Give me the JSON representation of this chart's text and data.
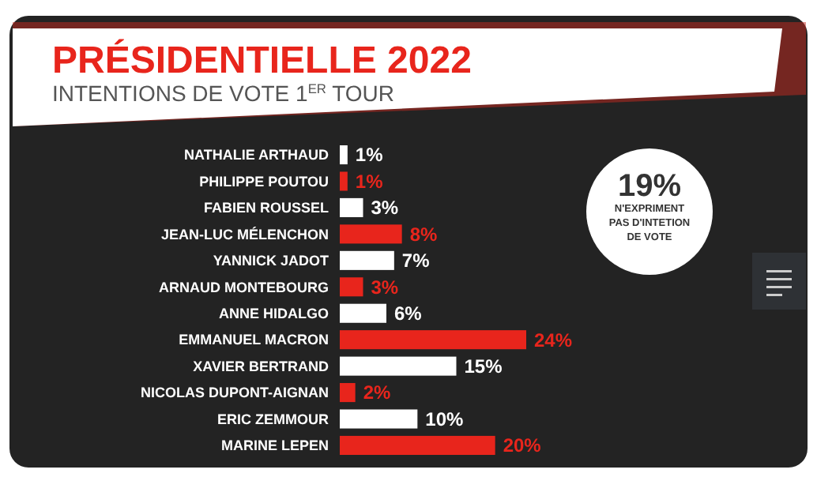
{
  "chart_data": {
    "type": "bar",
    "orientation": "horizontal",
    "title": "PRÉSIDENTIELLE 2022",
    "subtitle": "INTENTIONS DE VOTE 1$^{ER}$ TOUR",
    "categories": [
      "NATHALIE ARTHAUD",
      "PHILIPPE POUTOU",
      "FABIEN ROUSSEL",
      "JEAN-LUC MÉLENCHON",
      "YANNICK JADOT",
      "ARNAUD MONTEBOURG",
      "ANNE HIDALGO",
      "EMMANUEL MACRON",
      "XAVIER BERTRAND",
      "NICOLAS DUPONT-AIGNAN",
      "ERIC ZEMMOUR",
      "MARINE LEPEN"
    ],
    "values": [
      1,
      1,
      3,
      8,
      7,
      3,
      6,
      24,
      15,
      2,
      10,
      20
    ],
    "colors": [
      "#ffffff",
      "#e8251c",
      "#ffffff",
      "#e8251c",
      "#ffffff",
      "#e8251c",
      "#ffffff",
      "#e8251c",
      "#ffffff",
      "#e8251c",
      "#ffffff",
      "#e8251c"
    ],
    "value_labels": [
      "1%",
      "1%",
      "3%",
      "8%",
      "7%",
      "3%",
      "6%",
      "24%",
      "15%",
      "2%",
      "10%",
      "20%"
    ],
    "annotations": [
      "19%",
      "N'EXPRIMENT",
      "PAS D'INTETION",
      "DE VOTE"
    ]
  }
}
